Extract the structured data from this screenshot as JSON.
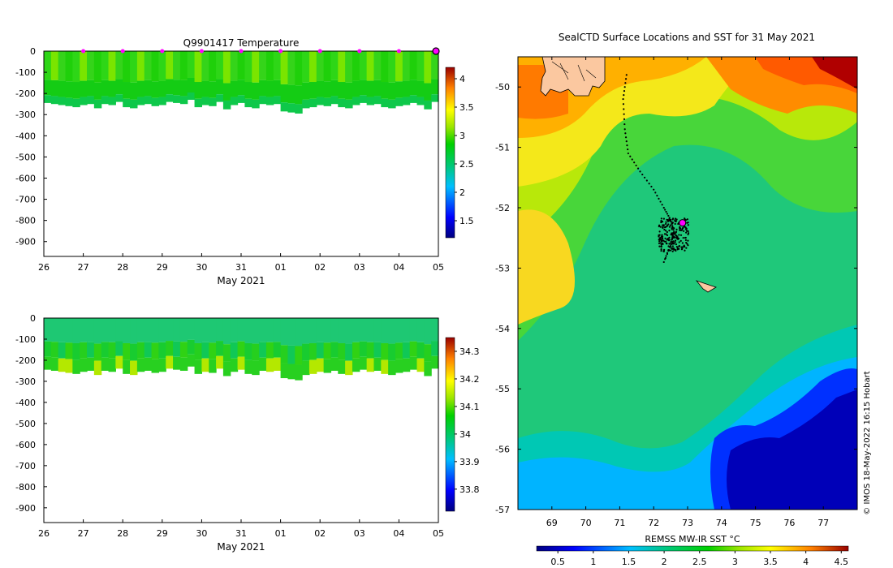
{
  "chart_data": [
    {
      "type": "heatmap",
      "title": "Q9901417  Temperature",
      "xlabel": "May 2021",
      "ylabel": "",
      "x_ticks": [
        "26",
        "27",
        "28",
        "29",
        "30",
        "31",
        "01",
        "02",
        "03",
        "04",
        "05"
      ],
      "y_ticks": [
        "0",
        "-100",
        "-200",
        "-300",
        "-400",
        "-500",
        "-600",
        "-700",
        "-800",
        "-900"
      ],
      "ylim": [
        -970,
        0
      ],
      "colorbar_ticks": [
        "1.5",
        "2",
        "2.5",
        "3",
        "3.5",
        "4"
      ],
      "colorbar_range": [
        1.2,
        4.2
      ],
      "marker_days": [
        1,
        2,
        3,
        4,
        5,
        6,
        7,
        8,
        9
      ],
      "marker_color": "#ff00ff",
      "profile_depths": [
        -245,
        -250,
        -255,
        -260,
        -265,
        -255,
        -250,
        -270,
        -250,
        -255,
        -240,
        -265,
        -270,
        -255,
        -250,
        -260,
        -255,
        -240,
        -245,
        -250,
        -230,
        -265,
        -255,
        -260,
        -240,
        -275,
        -255,
        -245,
        -265,
        -270,
        -250,
        -255,
        -250,
        -285,
        -290,
        -295,
        -270,
        -265,
        -255,
        -260,
        -250,
        -265,
        -270,
        -255,
        -245,
        -255,
        -250,
        -265,
        -270,
        -260,
        -255,
        -245,
        -255,
        -275,
        -240
      ]
    },
    {
      "type": "heatmap",
      "title": "",
      "xlabel": "May 2021",
      "ylabel": "",
      "x_ticks": [
        "26",
        "27",
        "28",
        "29",
        "30",
        "31",
        "01",
        "02",
        "03",
        "04",
        "05"
      ],
      "y_ticks": [
        "0",
        "-100",
        "-200",
        "-300",
        "-400",
        "-500",
        "-600",
        "-700",
        "-800",
        "-900"
      ],
      "ylim": [
        -970,
        0
      ],
      "colorbar_ticks": [
        "33.8",
        "33.9",
        "34",
        "34.1",
        "34.2",
        "34.3"
      ],
      "colorbar_range": [
        33.72,
        34.35
      ]
    },
    {
      "type": "heatmap",
      "title": "SealCTD Surface Locations and SST for 31 May 2021",
      "xlabel": "",
      "ylabel": "",
      "x_ticks": [
        "69",
        "70",
        "71",
        "72",
        "73",
        "74",
        "75",
        "76",
        "77"
      ],
      "y_ticks": [
        "-50",
        "-51",
        "-52",
        "-53",
        "-54",
        "-55",
        "-56",
        "-57"
      ],
      "xlim": [
        68,
        78
      ],
      "ylim": [
        -57,
        -49.5
      ],
      "colorbar_label": "REMSS MW-IR SST °C",
      "colorbar_ticks": [
        "0.5",
        "1",
        "1.5",
        "2",
        "2.5",
        "3",
        "3.5",
        "4",
        "4.5"
      ],
      "colorbar_range": [
        0.2,
        4.6
      ],
      "track_points": [
        [
          71.2,
          -49.8
        ],
        [
          71.1,
          -50.2
        ],
        [
          71.15,
          -50.7
        ],
        [
          71.25,
          -51.1
        ],
        [
          71.6,
          -51.4
        ],
        [
          72.0,
          -51.7
        ],
        [
          72.3,
          -52.0
        ],
        [
          72.5,
          -52.2
        ],
        [
          72.6,
          -52.4
        ],
        [
          72.5,
          -52.6
        ],
        [
          72.3,
          -52.9
        ],
        [
          72.6,
          -52.5
        ]
      ],
      "latest_position": [
        72.85,
        -52.25
      ]
    }
  ],
  "watermark": "© IMOS 18-May-2022 16:15 Hobart"
}
